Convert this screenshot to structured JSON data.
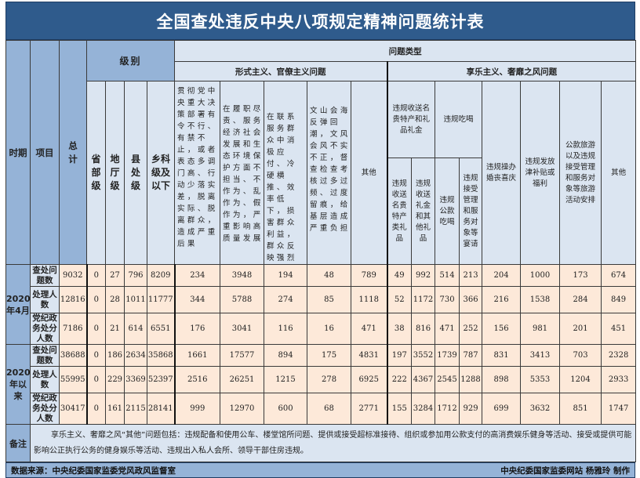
{
  "title": "全国查处违反中央八项规定精神问题统计表",
  "header": {
    "period": "时期",
    "item": "项目",
    "total": "总计",
    "level": "级别",
    "levels": [
      "省部级",
      "地厅级",
      "县处级",
      "乡科级及以下"
    ],
    "problem_type": "问题类型",
    "formalism": {
      "label": "形式主义、官僚主义问题",
      "cols": [
        "贯彻党中央重大决策部署有令不行、有禁不止，或者表态多调门高、行动少落实差，脱离实际、脱离群众，造成严重后果",
        "在履职尽责、服务经济社会发展和生态环境保护方面不担当、不作为、乱作为、假作为，严重影响高质量发展",
        "在联系服务群众中消极应付、冷硬横推、效率低下，损害群众利益，群众反映强烈",
        "文山会海反弹回潮，文风会风不实不正，督查检查考核过多过频、过度留痕，给基层造成严重负担",
        "其他"
      ]
    },
    "hedonism": {
      "label": "享乐主义、奢靡之风问题",
      "gifts": {
        "label": "违规收送名贵特产和礼品礼金",
        "subs": [
          "违规收送名贵特产类礼品",
          "违规收送礼金和其他礼品"
        ]
      },
      "dining": {
        "label": "违规吃喝",
        "subs": [
          "违规公款吃喝",
          "违规接受管理和服务对象等宴请"
        ]
      },
      "cols": [
        "违规操办婚丧喜庆",
        "违规发放津补贴或福利",
        "公款旅游以及违规接受管理和服务对象等旅游活动安排",
        "其他"
      ]
    }
  },
  "periods": [
    {
      "label": "2020年4月"
    },
    {
      "label": "2020年以来"
    }
  ],
  "items": [
    "查处问题数",
    "处理人数",
    "党纪政务处分人数"
  ],
  "rows": [
    [
      9032,
      0,
      27,
      796,
      8209,
      234,
      3948,
      194,
      48,
      789,
      49,
      992,
      514,
      213,
      204,
      1000,
      173,
      674
    ],
    [
      12816,
      0,
      28,
      1011,
      11777,
      344,
      5788,
      274,
      85,
      1118,
      52,
      1172,
      730,
      366,
      216,
      1538,
      284,
      849
    ],
    [
      7186,
      0,
      21,
      614,
      6551,
      176,
      3041,
      116,
      16,
      471,
      38,
      816,
      471,
      252,
      156,
      981,
      201,
      451
    ],
    [
      38688,
      0,
      186,
      2634,
      35868,
      1661,
      17577,
      894,
      175,
      4831,
      197,
      3552,
      1739,
      787,
      831,
      3413,
      703,
      2328
    ],
    [
      55995,
      0,
      229,
      3369,
      52397,
      2516,
      26251,
      1215,
      278,
      6925,
      222,
      4367,
      2545,
      1288,
      898,
      5353,
      1204,
      2933
    ],
    [
      30417,
      0,
      161,
      2115,
      28141,
      999,
      12970,
      600,
      68,
      2771,
      155,
      3284,
      1712,
      929,
      699,
      3632,
      851,
      1747
    ]
  ],
  "notes": {
    "label": "备注",
    "text": "享乐主义、奢靡之风“其他”问题包括：违规配备和使用公车、楼堂馆所问题、提供或接受超标准接待、组织或参加用公款支付的高消费娱乐健身等活动、接受或提供可能影响公正执行公务的健身娱乐等活动、违规出入私人会所、领导干部住房违规。"
  },
  "footer": {
    "source": "数据来源：中央纪委国家监委党风政风监督室",
    "credit": "中央纪委国家监委网站 杨雅玲 制作"
  }
}
